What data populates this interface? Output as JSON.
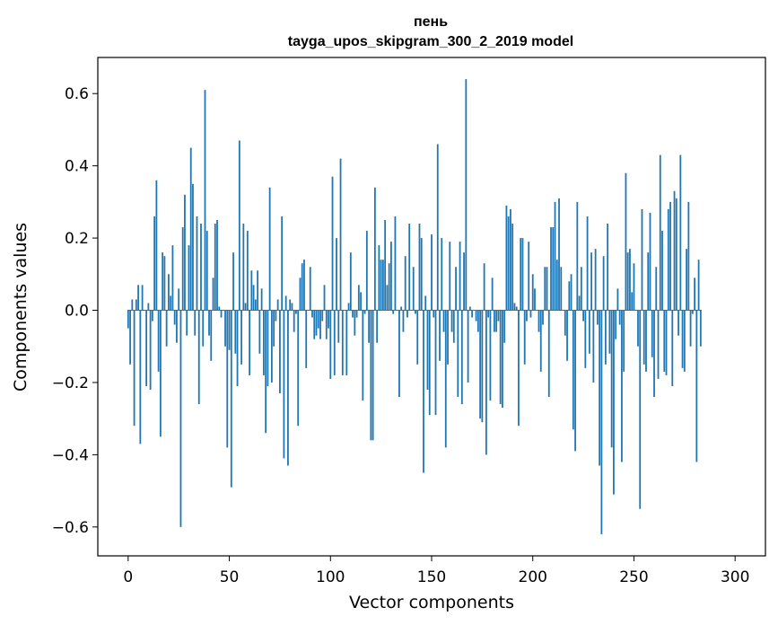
{
  "chart_data": {
    "type": "bar",
    "title": "пень",
    "subtitle": "tayga_upos_skipgram_300_2_2019 model",
    "xlabel": "Vector components",
    "ylabel": "Components values",
    "xlim": [
      -15,
      315
    ],
    "ylim": [
      -0.68,
      0.7
    ],
    "x_ticks": [
      0,
      50,
      100,
      150,
      200,
      250,
      300
    ],
    "y_ticks": [
      -0.6,
      -0.4,
      -0.2,
      0.0,
      0.2,
      0.4,
      0.6
    ],
    "x_tick_labels": [
      "0",
      "50",
      "100",
      "150",
      "200",
      "250",
      "300"
    ],
    "y_tick_labels": [
      "−0.6",
      "−0.4",
      "−0.2",
      "0.0",
      "0.2",
      "0.4",
      "0.6"
    ],
    "bar_color": "#1f77b4",
    "values": [
      -0.05,
      -0.15,
      0.03,
      -0.32,
      0.03,
      0.07,
      -0.37,
      0.07,
      0.0,
      -0.21,
      0.02,
      -0.22,
      -0.03,
      0.26,
      0.36,
      -0.17,
      -0.35,
      0.16,
      0.15,
      -0.1,
      0.1,
      0.04,
      0.18,
      -0.04,
      -0.09,
      0.06,
      -0.6,
      0.23,
      0.32,
      -0.07,
      0.18,
      0.45,
      0.35,
      -0.07,
      0.26,
      -0.26,
      0.24,
      -0.1,
      0.61,
      0.22,
      -0.07,
      -0.14,
      0.09,
      0.24,
      0.25,
      0.01,
      -0.02,
      0.0,
      -0.1,
      -0.38,
      -0.11,
      -0.49,
      0.16,
      -0.12,
      -0.21,
      0.47,
      -0.15,
      0.24,
      0.02,
      0.22,
      -0.18,
      0.11,
      0.07,
      0.03,
      0.11,
      -0.12,
      0.06,
      -0.18,
      -0.34,
      -0.21,
      0.34,
      -0.2,
      -0.1,
      -0.03,
      0.03,
      -0.23,
      0.26,
      -0.41,
      0.04,
      -0.43,
      0.03,
      0.02,
      -0.06,
      -0.01,
      -0.32,
      0.09,
      0.13,
      0.14,
      -0.16,
      0.0,
      0.12,
      -0.02,
      -0.08,
      -0.07,
      -0.05,
      -0.08,
      -0.03,
      0.07,
      -0.08,
      -0.05,
      -0.19,
      0.37,
      -0.18,
      0.2,
      -0.09,
      0.42,
      -0.18,
      0.0,
      -0.18,
      0.02,
      0.16,
      -0.02,
      -0.07,
      -0.02,
      0.07,
      0.05,
      -0.25,
      -0.01,
      0.22,
      -0.09,
      -0.36,
      -0.36,
      0.34,
      -0.09,
      0.18,
      0.14,
      0.14,
      0.25,
      0.07,
      0.13,
      0.19,
      -0.01,
      0.26,
      0.0,
      -0.24,
      0.01,
      -0.06,
      0.15,
      -0.02,
      0.24,
      0.0,
      0.12,
      -0.01,
      -0.15,
      0.24,
      0.2,
      -0.45,
      0.04,
      -0.22,
      -0.29,
      0.21,
      -0.02,
      -0.29,
      0.46,
      -0.14,
      0.2,
      -0.06,
      -0.38,
      -0.15,
      0.19,
      -0.06,
      -0.09,
      0.12,
      -0.24,
      0.19,
      -0.26,
      0.16,
      0.64,
      -0.2,
      0.01,
      -0.02,
      0.0,
      -0.03,
      -0.06,
      -0.3,
      -0.31,
      0.13,
      -0.4,
      -0.02,
      -0.25,
      0.09,
      -0.06,
      -0.06,
      -0.03,
      -0.26,
      -0.27,
      -0.09,
      0.29,
      0.26,
      0.28,
      0.24,
      0.02,
      0.01,
      -0.32,
      0.2,
      0.2,
      -0.15,
      -0.03,
      0.19,
      -0.02,
      0.1,
      0.06,
      0.0,
      -0.06,
      -0.17,
      -0.04,
      0.12,
      0.12,
      -0.24,
      0.23,
      0.23,
      0.3,
      0.14,
      0.31,
      0.12,
      0.0,
      -0.07,
      -0.14,
      0.08,
      0.1,
      -0.33,
      -0.39,
      0.3,
      0.04,
      0.12,
      -0.03,
      -0.16,
      0.26,
      -0.12,
      0.16,
      -0.2,
      0.17,
      -0.04,
      -0.43,
      -0.62,
      0.15,
      -0.15,
      0.24,
      -0.12,
      -0.38,
      -0.51,
      -0.08,
      0.06,
      -0.04,
      -0.42,
      -0.17,
      0.38,
      0.16,
      0.17,
      0.05,
      0.13,
      0.0,
      -0.1,
      -0.55,
      0.28,
      -0.15,
      -0.17,
      0.16,
      0.27,
      -0.13,
      -0.24,
      0.12,
      -0.19,
      0.43,
      0.22,
      -0.17,
      -0.18,
      0.28,
      0.3,
      -0.21,
      0.33,
      0.31,
      -0.07,
      0.43,
      -0.16,
      -0.17,
      0.17,
      0.3,
      -0.1,
      -0.01,
      0.09,
      -0.42,
      0.14,
      -0.1
    ]
  }
}
